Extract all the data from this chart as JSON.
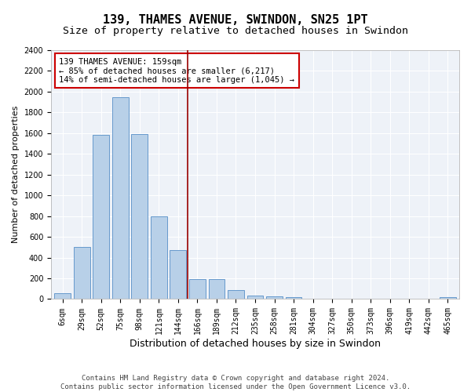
{
  "title": "139, THAMES AVENUE, SWINDON, SN25 1PT",
  "subtitle": "Size of property relative to detached houses in Swindon",
  "xlabel": "Distribution of detached houses by size in Swindon",
  "ylabel": "Number of detached properties",
  "bar_color": "#b8d0e8",
  "bar_edgecolor": "#6699cc",
  "background_color": "#eef2f8",
  "grid_color": "#ffffff",
  "categories": [
    "6sqm",
    "29sqm",
    "52sqm",
    "75sqm",
    "98sqm",
    "121sqm",
    "144sqm",
    "166sqm",
    "189sqm",
    "212sqm",
    "235sqm",
    "258sqm",
    "281sqm",
    "304sqm",
    "327sqm",
    "350sqm",
    "373sqm",
    "396sqm",
    "419sqm",
    "442sqm",
    "465sqm"
  ],
  "values": [
    55,
    500,
    1580,
    1950,
    1590,
    800,
    475,
    195,
    195,
    90,
    35,
    30,
    22,
    0,
    0,
    0,
    0,
    0,
    0,
    0,
    22
  ],
  "vline_color": "#990000",
  "annotation_text": "139 THAMES AVENUE: 159sqm\n← 85% of detached houses are smaller (6,217)\n14% of semi-detached houses are larger (1,045) →",
  "annotation_box_color": "#ffffff",
  "annotation_box_edgecolor": "#cc0000",
  "ylim": [
    0,
    2400
  ],
  "yticks": [
    0,
    200,
    400,
    600,
    800,
    1000,
    1200,
    1400,
    1600,
    1800,
    2000,
    2200,
    2400
  ],
  "footer_text": "Contains HM Land Registry data © Crown copyright and database right 2024.\nContains public sector information licensed under the Open Government Licence v3.0.",
  "title_fontsize": 11,
  "subtitle_fontsize": 9.5,
  "xlabel_fontsize": 9,
  "ylabel_fontsize": 8,
  "tick_fontsize": 7,
  "annotation_fontsize": 7.5,
  "footer_fontsize": 6.5,
  "vline_pos": 6.5
}
